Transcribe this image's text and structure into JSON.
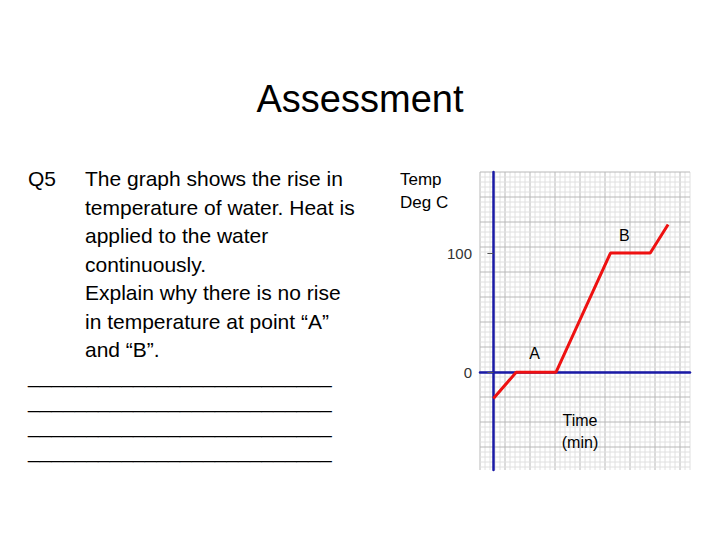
{
  "slide": {
    "title": "Assessment",
    "question": {
      "number": "Q5",
      "lines": [
        "The graph shows the rise in",
        "temperature of water. Heat is",
        "applied to the water",
        "continuously.",
        "Explain why there is no rise",
        "in temperature at point “A”",
        "and “B”."
      ]
    },
    "answer_lines": [
      "__________________________",
      "__________________________",
      "__________________________",
      "__________________________"
    ]
  },
  "chart_data": {
    "type": "line",
    "x_label": "Time\n(min)",
    "y_label": "Temp\nDeg C",
    "x": [
      0,
      5.1,
      14,
      26.2,
      35.1,
      39.1
    ],
    "values": [
      -22,
      0,
      0,
      100,
      100,
      124
    ],
    "color": "#ee1111",
    "xlim": [
      -3,
      44
    ],
    "ylim": [
      -82,
      168
    ],
    "yticks": [
      0,
      100
    ],
    "tick_labels": "y",
    "grid": true,
    "annotations": [
      {
        "text": "A",
        "x": 9.2,
        "y": 16
      },
      {
        "text": "B",
        "x": 29.3,
        "y": 115
      }
    ]
  }
}
